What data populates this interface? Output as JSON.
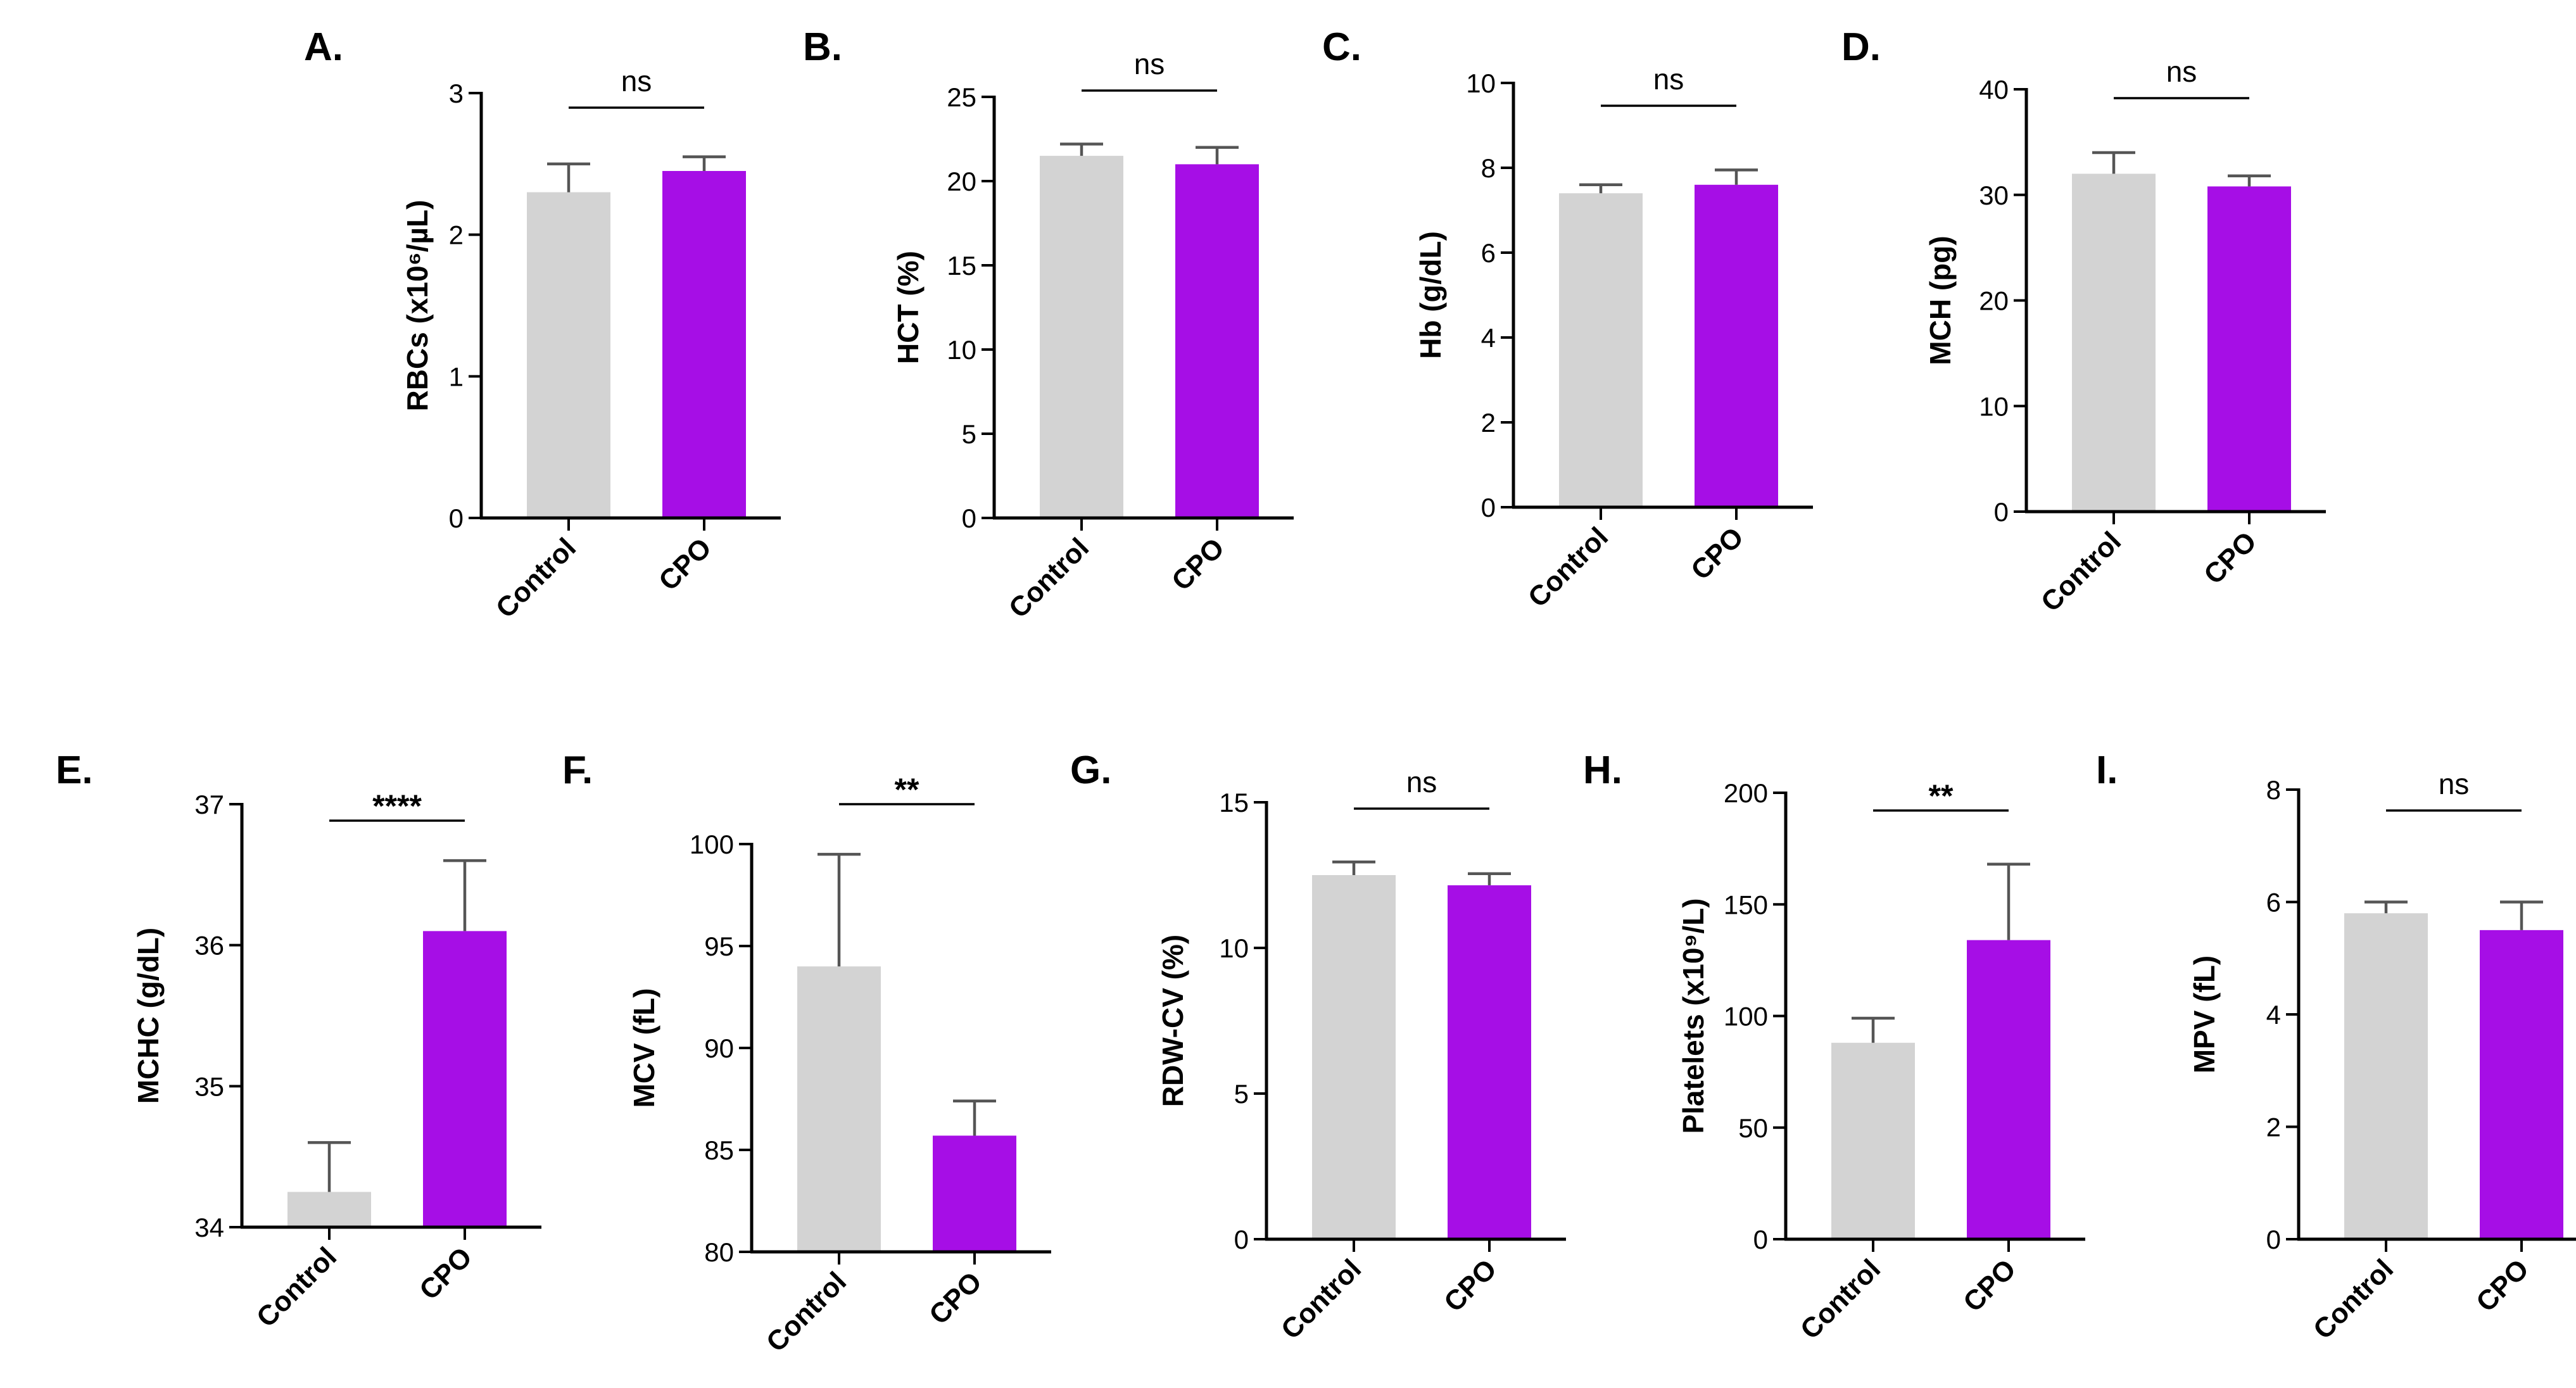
{
  "chart_data": [
    {
      "panel": "A.",
      "type": "bar",
      "ylabel": "RBCs (x10⁶/µL)",
      "categories": [
        "Control",
        "CPO"
      ],
      "values": [
        2.3,
        2.45
      ],
      "errors": [
        0.2,
        0.1
      ],
      "colors": [
        "#d3d3d3",
        "#a60ee6"
      ],
      "ylim": [
        0,
        3
      ],
      "yticks": [
        0,
        1,
        2,
        3
      ],
      "significance": "ns"
    },
    {
      "panel": "B.",
      "type": "bar",
      "ylabel": "HCT (%)",
      "categories": [
        "Control",
        "CPO"
      ],
      "values": [
        21.5,
        21.0
      ],
      "errors": [
        0.7,
        1.0
      ],
      "colors": [
        "#d3d3d3",
        "#a60ee6"
      ],
      "ylim": [
        0,
        25
      ],
      "yticks": [
        0,
        5,
        10,
        15,
        20,
        25
      ],
      "significance": "ns"
    },
    {
      "panel": "C.",
      "type": "bar",
      "ylabel": "Hb (g/dL)",
      "categories": [
        "Control",
        "CPO"
      ],
      "values": [
        7.4,
        7.6
      ],
      "errors": [
        0.2,
        0.35
      ],
      "colors": [
        "#d3d3d3",
        "#a60ee6"
      ],
      "ylim": [
        0,
        10
      ],
      "yticks": [
        0,
        2,
        4,
        6,
        8,
        10
      ],
      "significance": "ns"
    },
    {
      "panel": "D.",
      "type": "bar",
      "ylabel": "MCH (pg)",
      "categories": [
        "Control",
        "CPO"
      ],
      "values": [
        32.0,
        30.8
      ],
      "errors": [
        2.0,
        1.0
      ],
      "colors": [
        "#d3d3d3",
        "#a60ee6"
      ],
      "ylim": [
        0,
        40
      ],
      "yticks": [
        0,
        10,
        20,
        30,
        40
      ],
      "significance": "ns"
    },
    {
      "panel": "E.",
      "type": "bar",
      "ylabel": "MCHC (g/dL)",
      "categories": [
        "Control",
        "CPO"
      ],
      "values": [
        34.25,
        36.1
      ],
      "errors": [
        0.35,
        0.5
      ],
      "colors": [
        "#d3d3d3",
        "#a60ee6"
      ],
      "ylim": [
        34,
        37
      ],
      "yticks": [
        34,
        35,
        36,
        37
      ],
      "significance": "****"
    },
    {
      "panel": "F.",
      "type": "bar",
      "ylabel": "MCV (fL)",
      "categories": [
        "Control",
        "CPO"
      ],
      "values": [
        94.0,
        85.7
      ],
      "errors": [
        5.5,
        1.7
      ],
      "colors": [
        "#d3d3d3",
        "#a60ee6"
      ],
      "ylim": [
        80,
        100
      ],
      "yticks": [
        80,
        85,
        90,
        95,
        100
      ],
      "significance": "**"
    },
    {
      "panel": "G.",
      "type": "bar",
      "ylabel": "RDW-CV (%)",
      "categories": [
        "Control",
        "CPO"
      ],
      "values": [
        12.5,
        12.15
      ],
      "errors": [
        0.45,
        0.4
      ],
      "colors": [
        "#d3d3d3",
        "#a60ee6"
      ],
      "ylim": [
        0,
        15
      ],
      "yticks": [
        0,
        5,
        10,
        15
      ],
      "significance": "ns"
    },
    {
      "panel": "H.",
      "type": "bar",
      "ylabel": "Platelets (x10⁹/L)",
      "categories": [
        "Control",
        "CPO"
      ],
      "values": [
        88,
        134
      ],
      "errors": [
        11,
        34
      ],
      "colors": [
        "#d3d3d3",
        "#a60ee6"
      ],
      "ylim": [
        0,
        200
      ],
      "yticks": [
        0,
        50,
        100,
        150,
        200
      ],
      "significance": "**"
    },
    {
      "panel": "I.",
      "type": "bar",
      "ylabel": "MPV (fL)",
      "categories": [
        "Control",
        "CPO"
      ],
      "values": [
        5.8,
        5.5
      ],
      "errors": [
        0.2,
        0.5
      ],
      "colors": [
        "#d3d3d3",
        "#a60ee6"
      ],
      "ylim": [
        0,
        8
      ],
      "yticks": [
        0,
        2,
        4,
        6,
        8
      ],
      "significance": "ns"
    }
  ]
}
